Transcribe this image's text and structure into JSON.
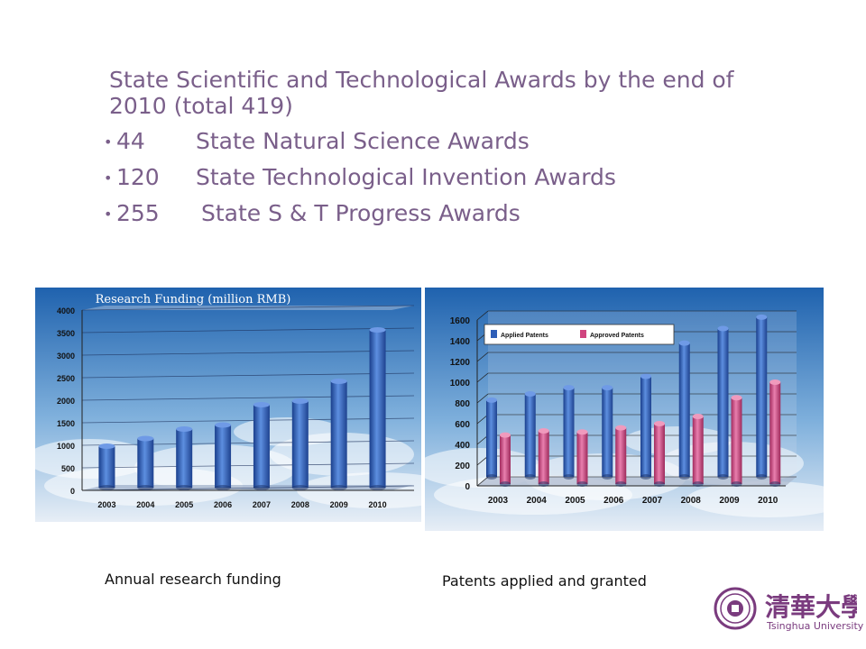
{
  "headline": {
    "title": "State Scientific and Technological Awards by the end of 2010 (total 419)",
    "bullets": [
      {
        "num": "44",
        "label": "State Natural Science Awards"
      },
      {
        "num": "120",
        "label": "State Technological Invention Awards"
      },
      {
        "num": "255",
        "label": "State S & T Progress Awards"
      }
    ]
  },
  "colors": {
    "headline": "#7a5f8a",
    "applied": "#2f5fb8",
    "approved": "#d0457f",
    "funding": "#2a56b0"
  },
  "chart_data": [
    {
      "type": "bar",
      "title": "Research Funding (million RMB)",
      "categories": [
        "2003",
        "2004",
        "2005",
        "2006",
        "2007",
        "2008",
        "2009",
        "2010"
      ],
      "values": [
        980,
        1150,
        1360,
        1450,
        1900,
        1980,
        2420,
        3560
      ],
      "ylim": [
        0,
        4000
      ],
      "yticks": [
        0,
        500,
        1000,
        1500,
        2000,
        2500,
        3000,
        3500,
        4000
      ],
      "grid": true
    },
    {
      "type": "bar",
      "categories": [
        "2003",
        "2004",
        "2005",
        "2006",
        "2007",
        "2008",
        "2009",
        "2010"
      ],
      "series": [
        {
          "name": "Applied Patents",
          "values": [
            740,
            800,
            860,
            860,
            970,
            1290,
            1430,
            1540
          ]
        },
        {
          "name": "Approved Patents",
          "values": [
            490,
            530,
            520,
            560,
            600,
            670,
            850,
            1000
          ]
        }
      ],
      "ylim": [
        0,
        1600
      ],
      "yticks": [
        0,
        200,
        400,
        600,
        800,
        1000,
        1200,
        1400,
        1600
      ],
      "legend": "top-left",
      "grid": true
    }
  ],
  "captions": {
    "funding": "Annual research funding",
    "patents": "Patents applied and granted"
  },
  "logo": {
    "chinese": "清華大學",
    "english": "Tsinghua University"
  }
}
